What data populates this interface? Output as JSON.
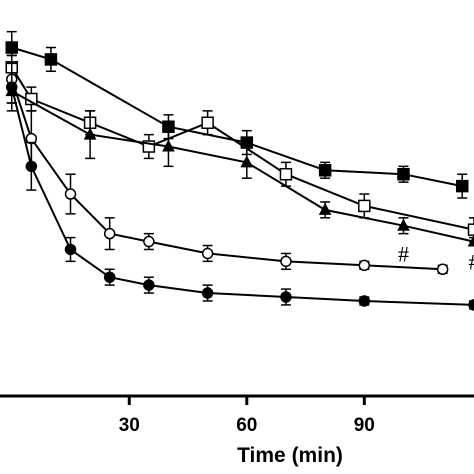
{
  "chart_data": {
    "type": "line",
    "xlabel": "Time (min)",
    "ylabel": "",
    "xlim": [
      -3,
      118
    ],
    "ylim": [
      0,
      100
    ],
    "x_ticks": [
      30,
      60,
      90
    ],
    "tick_labels": [
      "30",
      "60",
      "90"
    ],
    "grid": false,
    "legend": "none",
    "series": [
      {
        "marker": "filled-square",
        "x": [
          0,
          10,
          40,
          60,
          80,
          100,
          115
        ],
        "y": [
          88,
          85,
          68,
          64,
          57,
          56,
          53
        ],
        "err": [
          4,
          3,
          3,
          3,
          2,
          2,
          3
        ]
      },
      {
        "marker": "open-square",
        "x": [
          0,
          5,
          20,
          35,
          50,
          70,
          90,
          118
        ],
        "y": [
          83,
          75,
          69,
          63,
          69,
          56,
          48,
          42
        ],
        "err": [
          3,
          3,
          3,
          3,
          3,
          3,
          3,
          3
        ]
      },
      {
        "marker": "filled-triangle",
        "x": [
          0,
          20,
          40,
          60,
          80,
          100,
          118
        ],
        "y": [
          77,
          66,
          63,
          59,
          47,
          43,
          39
        ],
        "err": [
          3,
          6,
          5,
          4,
          2,
          2,
          1
        ]
      },
      {
        "marker": "open-circle",
        "x": [
          0,
          5,
          15,
          25,
          35,
          50,
          70,
          90,
          110
        ],
        "y": [
          80,
          65,
          51,
          41,
          39,
          36,
          34,
          33,
          32
        ],
        "err": [
          6,
          7,
          5,
          4,
          2,
          2,
          2,
          1,
          1
        ]
      },
      {
        "marker": "filled-circle",
        "x": [
          0,
          5,
          15,
          25,
          35,
          50,
          70,
          90,
          118
        ],
        "y": [
          78,
          58,
          37,
          30,
          28,
          26,
          25,
          24,
          23
        ],
        "err": [
          6,
          6,
          3,
          2,
          2,
          2,
          2,
          1,
          1
        ]
      }
    ],
    "annotations": [
      {
        "text": "#",
        "x": 100,
        "y": 36
      },
      {
        "text": "#",
        "x": 118,
        "y": 34
      }
    ]
  }
}
